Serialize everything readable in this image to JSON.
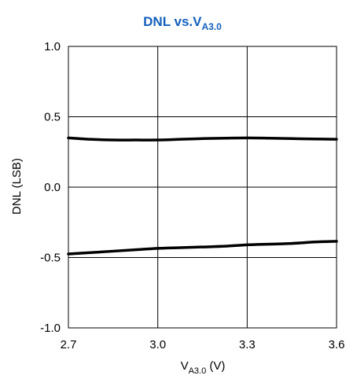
{
  "chart_data": {
    "type": "line",
    "title": "DNL vs.V",
    "title_subscript": "A3.0",
    "title_color": "#1560BD",
    "xlabel": "V",
    "xlabel_subscript": "A3.0",
    "xlabel_unit": " (V)",
    "ylabel": "DNL (LSB)",
    "xlim": [
      2.7,
      3.6
    ],
    "ylim": [
      -1.0,
      1.0
    ],
    "x_ticks": [
      2.7,
      3.0,
      3.3,
      3.6
    ],
    "x_tick_labels": [
      "2.7",
      "3.0",
      "3.3",
      "3.6"
    ],
    "y_ticks": [
      1.0,
      0.5,
      0.0,
      -0.5,
      -1.0
    ],
    "y_tick_labels": [
      "1.0",
      "0.5",
      "0.0",
      "-0.5",
      "-1.0"
    ],
    "grid": true,
    "line_color": "#000000",
    "series": [
      {
        "x": [
          2.7,
          2.775,
          2.85,
          2.925,
          3.0,
          3.075,
          3.15,
          3.225,
          3.3,
          3.375,
          3.45,
          3.525,
          3.6
        ],
        "values": [
          0.35,
          0.34,
          0.335,
          0.335,
          0.335,
          0.34,
          0.345,
          0.348,
          0.35,
          0.348,
          0.345,
          0.342,
          0.34
        ]
      },
      {
        "x": [
          2.7,
          2.775,
          2.85,
          2.925,
          3.0,
          3.075,
          3.15,
          3.225,
          3.3,
          3.375,
          3.45,
          3.525,
          3.6
        ],
        "values": [
          -0.475,
          -0.465,
          -0.455,
          -0.445,
          -0.435,
          -0.43,
          -0.425,
          -0.42,
          -0.41,
          -0.405,
          -0.4,
          -0.39,
          -0.385
        ]
      }
    ]
  }
}
